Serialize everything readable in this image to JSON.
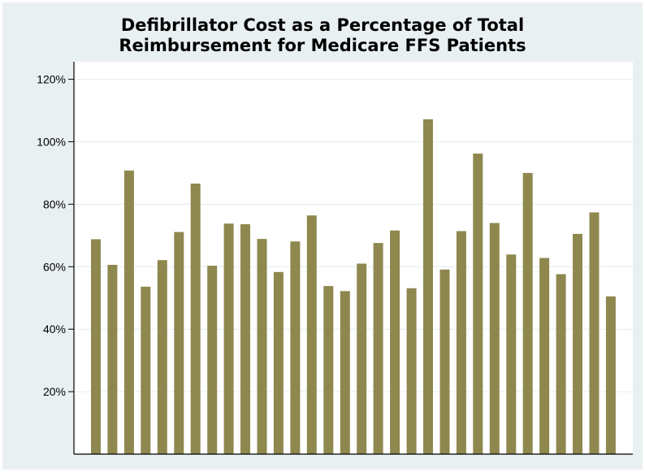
{
  "chart_data": {
    "type": "bar",
    "title": [
      "Defibrillator Cost as a Percentage of Total",
      "Reimbursement for Medicare FFS Patients"
    ],
    "xlabel": "",
    "ylabel": "",
    "ylim": [
      0,
      125
    ],
    "yticks": [
      20,
      40,
      60,
      80,
      100,
      120
    ],
    "ytick_labels": [
      "20%",
      "40%",
      "60%",
      "80%",
      "100%",
      "120%"
    ],
    "grid": true,
    "bar_color": "#8e884f",
    "plot_background": "#ffffff",
    "figure_background": "#e9f0f2",
    "values": [
      68.8,
      60.6,
      90.8,
      53.6,
      62.1,
      71.1,
      86.6,
      60.3,
      73.8,
      73.6,
      68.9,
      58.3,
      68.1,
      76.4,
      53.8,
      52.2,
      61.0,
      67.6,
      71.6,
      53.1,
      107.2,
      59.1,
      71.4,
      96.2,
      74.0,
      63.9,
      90.0,
      62.8,
      57.6,
      70.5,
      77.4,
      50.5
    ]
  }
}
